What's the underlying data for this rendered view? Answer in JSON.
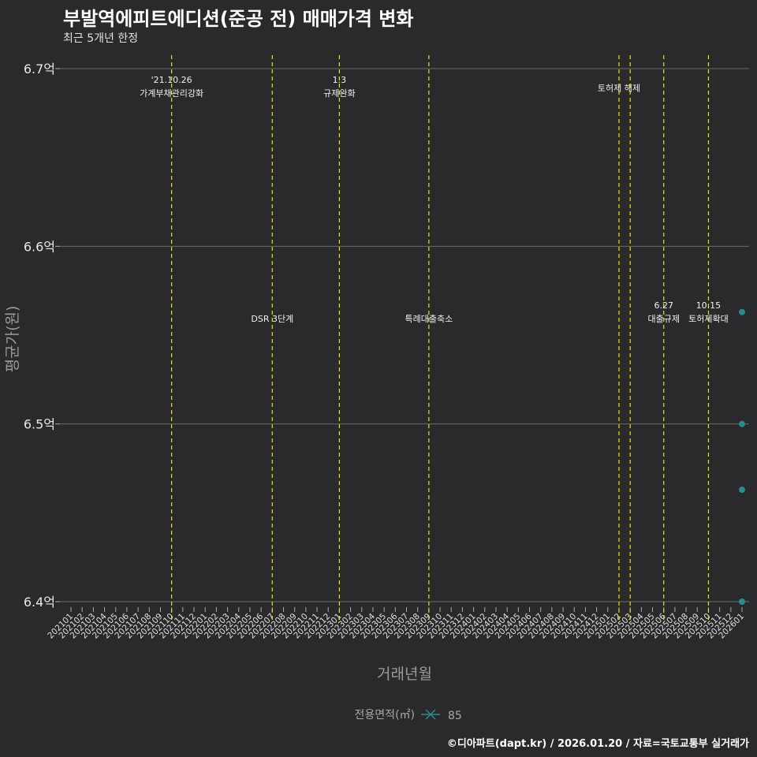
{
  "chart_data": {
    "type": "scatter",
    "title": "부발역에피트에디션(준공 전) 매매가격 변화",
    "subtitle": "최근 5개년 한정",
    "xlabel": "거래년월",
    "ylabel": "평균가(원)",
    "ylim": [
      6.39,
      6.705
    ],
    "yticks": [
      6.4,
      6.5,
      6.6,
      6.7
    ],
    "ytick_labels": [
      "6.4억",
      "6.5억",
      "6.6억",
      "6.7억"
    ],
    "xticks": [
      "202101",
      "202102",
      "202103",
      "202104",
      "202105",
      "202106",
      "202107",
      "202108",
      "202109",
      "202110",
      "202111",
      "202112",
      "202201",
      "202202",
      "202203",
      "202204",
      "202205",
      "202206",
      "202207",
      "202208",
      "202209",
      "202210",
      "202211",
      "202212",
      "202301",
      "202302",
      "202303",
      "202304",
      "202305",
      "202306",
      "202307",
      "202308",
      "202309",
      "202310",
      "202311",
      "202312",
      "202401",
      "202402",
      "202403",
      "202404",
      "202405",
      "202406",
      "202407",
      "202408",
      "202409",
      "202410",
      "202411",
      "202412",
      "202501",
      "202502",
      "202503",
      "202504",
      "202505",
      "202506",
      "202507",
      "202508",
      "202509",
      "202510",
      "202511",
      "202512",
      "202601"
    ],
    "series": [
      {
        "name": "85",
        "color": "#2a8c8c",
        "points": [
          {
            "x": "202601",
            "y": 6.563
          },
          {
            "x": "202601",
            "y": 6.5
          },
          {
            "x": "202601",
            "y": 6.463
          },
          {
            "x": "202601",
            "y": 6.4
          }
        ]
      }
    ],
    "vlines": [
      {
        "x": "202110",
        "lines": [
          "'21.10.26",
          "가계부채관리강화"
        ],
        "label_y": 6.692
      },
      {
        "x": "202207",
        "lines": [
          "",
          "DSR 3단계"
        ],
        "label_y": 6.565
      },
      {
        "x": "202301",
        "lines": [
          "1.3",
          "규제완화"
        ],
        "label_y": 6.692
      },
      {
        "x": "202309",
        "lines": [
          "",
          "특례대출축소"
        ],
        "label_y": 6.565
      },
      {
        "x": "202502",
        "lines": [
          "",
          "토허제 해제"
        ],
        "label_y": 6.695
      },
      {
        "x": "202503",
        "lines": [
          "",
          ""
        ],
        "label_y": 6.692
      },
      {
        "x": "202506",
        "lines": [
          "6.27",
          "대출규제"
        ],
        "label_y": 6.565
      },
      {
        "x": "202510",
        "lines": [
          "10.15",
          "토허제확대"
        ],
        "label_y": 6.565
      }
    ],
    "legend": {
      "title": "전용면적(㎡)",
      "entries": [
        "85"
      ],
      "placement": "bottom"
    },
    "vline_color": "#e6e600",
    "grid": true
  },
  "caption": "©디아파트(dapt.kr) / 2026.01.20 / 자료=국토교통부 실거래가"
}
